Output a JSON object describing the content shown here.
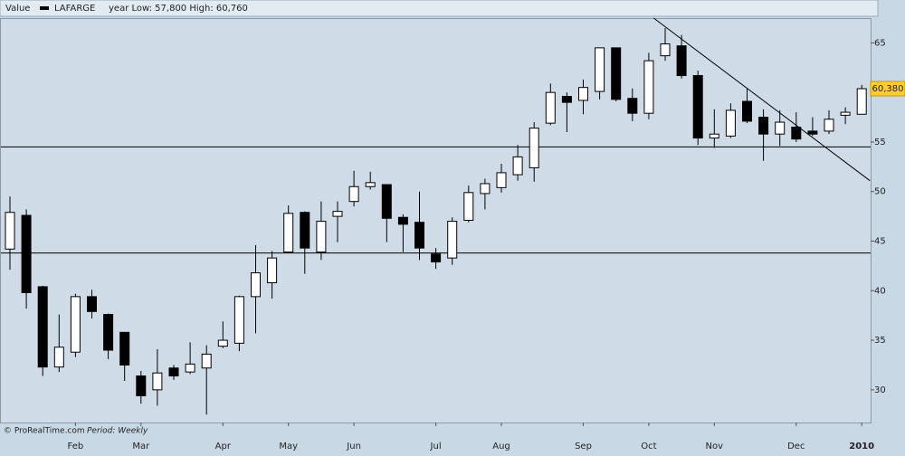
{
  "chart_data": {
    "type": "candlestick",
    "header_label": "Value",
    "header_range": "year Low: 57,800 High: 60,760",
    "source": "© ProRealTime.com",
    "period": "Period: Weekly",
    "categories": [
      null,
      null,
      null,
      null,
      null,
      null,
      null,
      null,
      null,
      null,
      null,
      null,
      null,
      null,
      null,
      null,
      null,
      null,
      null,
      null,
      null,
      null,
      null,
      null,
      null,
      null,
      null,
      null,
      null,
      null,
      null,
      null,
      null,
      null,
      null,
      null,
      null,
      null,
      null,
      null,
      null,
      null,
      null,
      null,
      null,
      null,
      null,
      null,
      null,
      null,
      null,
      null,
      null
    ],
    "series": [
      {
        "name": "LAFARGE",
        "up_color": "#ffffff",
        "down_color": "#000000",
        "open": [
          44.2,
          47.6,
          40.4,
          32.3,
          33.8,
          39.4,
          37.6,
          35.8,
          31.4,
          30.0,
          32.2,
          31.8,
          32.2,
          34.4,
          34.7,
          39.4,
          40.8,
          43.9,
          47.9,
          43.9,
          47.5,
          49.0,
          50.5,
          50.7,
          47.4,
          46.9,
          43.7,
          43.3,
          47.1,
          49.8,
          50.4,
          51.7,
          52.4,
          56.9,
          59.6,
          59.2,
          60.1,
          64.5,
          59.4,
          57.9,
          63.7,
          64.7,
          61.7,
          55.4,
          55.6,
          59.1,
          57.5,
          55.8,
          56.5,
          56.1,
          56.1,
          57.7,
          57.8
        ],
        "high": [
          49.5,
          48.2,
          40.5,
          37.6,
          39.7,
          40.1,
          37.7,
          35.8,
          31.9,
          34.1,
          32.5,
          34.8,
          34.5,
          36.9,
          39.5,
          44.6,
          44.0,
          48.6,
          48.0,
          49.0,
          49.0,
          52.1,
          52.0,
          50.7,
          47.7,
          50.0,
          44.3,
          47.4,
          50.6,
          51.3,
          52.8,
          54.7,
          57.0,
          60.9,
          60.0,
          61.3,
          64.5,
          64.5,
          60.4,
          64.0,
          66.5,
          65.8,
          62.2,
          58.3,
          58.9,
          60.4,
          58.3,
          58.2,
          58.0,
          57.5,
          58.2,
          58.5,
          60.76
        ],
        "low": [
          42.1,
          38.2,
          31.4,
          31.8,
          33.3,
          37.2,
          33.1,
          30.9,
          28.6,
          28.4,
          31.0,
          31.6,
          27.5,
          34.2,
          33.9,
          35.7,
          39.2,
          43.8,
          41.7,
          43.1,
          44.9,
          48.5,
          50.2,
          44.9,
          43.9,
          43.1,
          42.2,
          42.6,
          46.9,
          48.2,
          49.9,
          51.1,
          51.0,
          56.7,
          56.0,
          57.8,
          59.3,
          59.1,
          57.1,
          57.3,
          63.2,
          61.4,
          54.7,
          54.4,
          55.4,
          56.9,
          53.1,
          54.6,
          55.0,
          55.6,
          55.8,
          56.8,
          57.8
        ],
        "close": [
          47.9,
          39.8,
          32.3,
          34.3,
          39.4,
          37.9,
          34.0,
          32.5,
          29.4,
          31.7,
          31.4,
          32.6,
          33.6,
          35.0,
          39.4,
          41.8,
          43.3,
          47.8,
          44.3,
          47.0,
          48.0,
          50.5,
          50.9,
          47.3,
          46.7,
          44.3,
          42.9,
          47.0,
          49.9,
          50.8,
          51.9,
          53.5,
          56.4,
          60.0,
          59.0,
          60.5,
          64.5,
          59.3,
          57.9,
          63.2,
          64.9,
          61.7,
          55.4,
          55.8,
          58.2,
          57.1,
          55.8,
          57.0,
          55.3,
          55.8,
          57.3,
          58.0,
          60.38
        ]
      }
    ],
    "last_price": {
      "value": 60.38,
      "label": "60,380"
    },
    "hlines": [
      54.5,
      43.8
    ],
    "trendline": {
      "x": [
        39.3,
        52.5
      ],
      "y": [
        67.5,
        51.1
      ]
    },
    "xticks": [
      {
        "value": 4,
        "label": "Feb"
      },
      {
        "value": 8,
        "label": "Mar"
      },
      {
        "value": 13,
        "label": "Apr"
      },
      {
        "value": 17,
        "label": "May"
      },
      {
        "value": 21,
        "label": "Jun"
      },
      {
        "value": 26,
        "label": "Jul"
      },
      {
        "value": 30,
        "label": "Aug"
      },
      {
        "value": 35,
        "label": "Sep"
      },
      {
        "value": 39,
        "label": "Oct"
      },
      {
        "value": 43,
        "label": "Nov"
      },
      {
        "value": 48,
        "label": "Dec"
      },
      {
        "value": 52,
        "label": "2010"
      }
    ],
    "ylim": [
      26.7,
      67.5
    ],
    "yticks": [
      30,
      35,
      40,
      45,
      50,
      55,
      60,
      65
    ]
  }
}
